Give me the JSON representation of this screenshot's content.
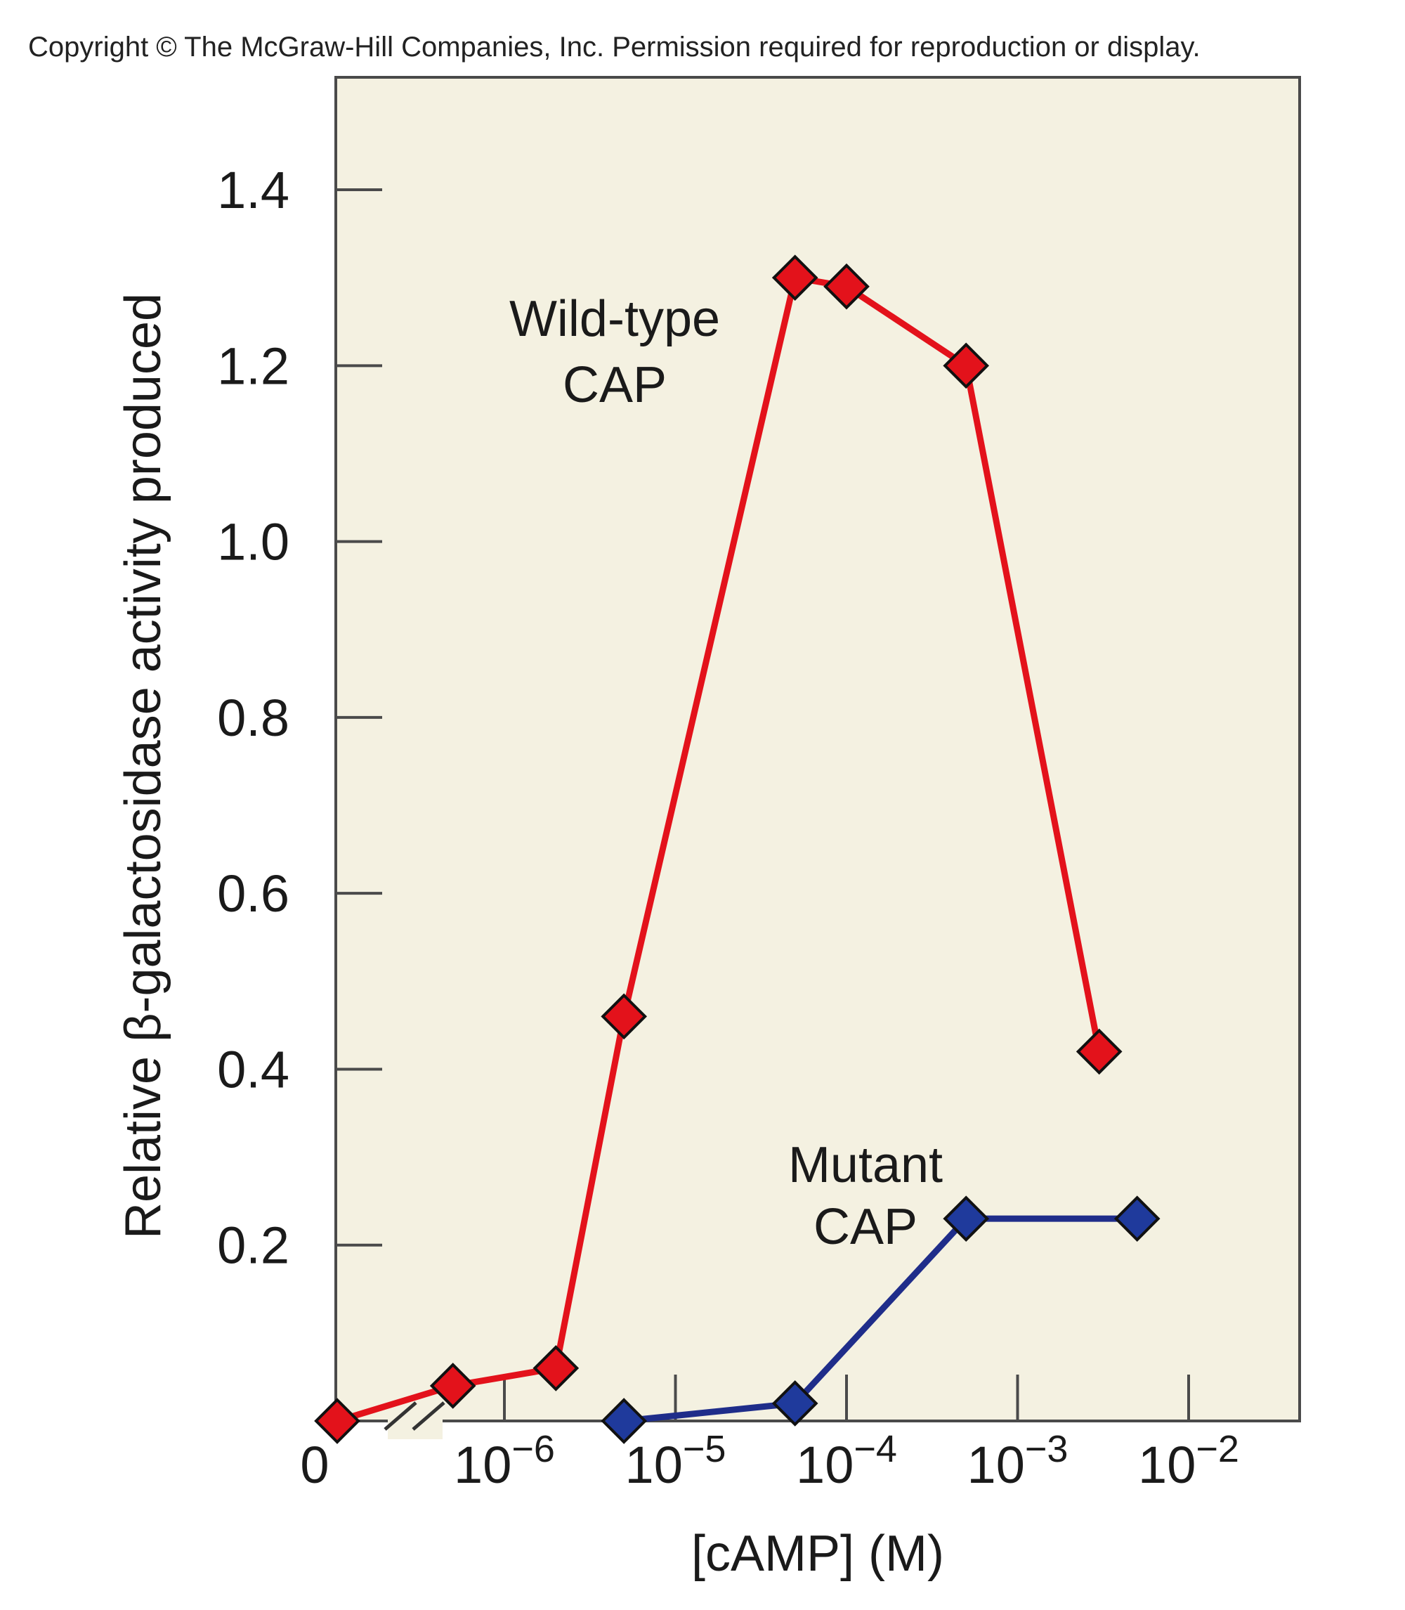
{
  "copyright": "Copyright © The McGraw-Hill Companies, Inc. Permission required for reproduction or display.",
  "chart_data": {
    "type": "line",
    "xlabel": "[cAMP] (M)",
    "ylabel": "Relative β-galactosidase activity produced",
    "x_scale": "log",
    "x_ticks": [
      {
        "label": "0",
        "value": 0
      },
      {
        "base": "10",
        "exp": "−6",
        "value": 1e-06
      },
      {
        "base": "10",
        "exp": "−5",
        "value": 1e-05
      },
      {
        "base": "10",
        "exp": "−4",
        "value": 0.0001
      },
      {
        "base": "10",
        "exp": "−3",
        "value": 0.001
      },
      {
        "base": "10",
        "exp": "−2",
        "value": 0.01
      }
    ],
    "axis_break": "between 0 and 10⁻⁶",
    "y_ticks": [
      0.2,
      0.4,
      0.6,
      0.8,
      1.0,
      1.2,
      1.4
    ],
    "y_tick_labels": [
      "0.2",
      "0.4",
      "0.6",
      "0.8",
      "1.0",
      "1.2",
      "1.4"
    ],
    "ylim": [
      0,
      1.5
    ],
    "grid": false,
    "legend": "none",
    "series": [
      {
        "annotation": [
          "Wild-type",
          "CAP"
        ],
        "color": "#e3121b",
        "marker_color": "#e3121b",
        "points": [
          {
            "x": 0,
            "y": 0.0
          },
          {
            "x": 5e-07,
            "y": 0.04
          },
          {
            "x": 2e-06,
            "y": 0.06
          },
          {
            "x": 5e-06,
            "y": 0.46
          },
          {
            "x": 5e-05,
            "y": 1.3
          },
          {
            "x": 0.0001,
            "y": 1.29
          },
          {
            "x": 0.0005,
            "y": 1.2
          },
          {
            "x": 0.003,
            "y": 0.42
          }
        ]
      },
      {
        "annotation": [
          "Mutant",
          "CAP"
        ],
        "color": "#1f2d8a",
        "marker_color": "#1f3a9c",
        "points": [
          {
            "x": 5e-06,
            "y": 0.0
          },
          {
            "x": 5e-05,
            "y": 0.02
          },
          {
            "x": 0.0005,
            "y": 0.23
          },
          {
            "x": 0.005,
            "y": 0.23
          }
        ]
      }
    ]
  }
}
